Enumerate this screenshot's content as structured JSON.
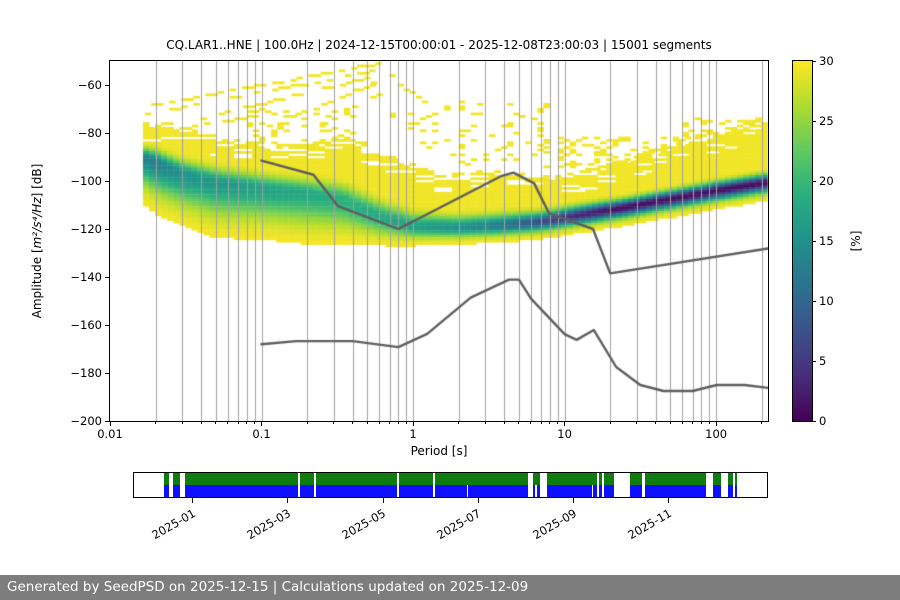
{
  "title": "CQ.LAR1..HNE | 100.0Hz | 2024-12-15T00:00:01 - 2025-12-08T23:00:03 | 15001 segments",
  "footer": {
    "text": "Generated by SeedPSD on 2025-12-15 | Calculations updated on 2025-12-09",
    "bg": "#7d7d7d",
    "fg": "#ffffff"
  },
  "chart_data": {
    "type": "heatmap",
    "subtype": "ppsd-probability-density",
    "title": "CQ.LAR1..HNE | 100.0Hz | 2024-12-15T00:00:01 - 2025-12-08T23:00:03 | 15001 segments",
    "xlabel": "Period [s]",
    "ylabel_prefix": "Amplitude [",
    "ylabel_math": "m²/s⁴/Hz",
    "ylabel_suffix": "] [dB]",
    "x_scale": "log",
    "xlim": [
      0.01,
      220
    ],
    "ylim": [
      -200,
      -50
    ],
    "x_ticks": [
      0.01,
      0.1,
      1,
      10,
      100
    ],
    "x_tick_labels": [
      "0.01",
      "0.1",
      "1",
      "10",
      "100"
    ],
    "y_ticks": [
      -60,
      -80,
      -100,
      -120,
      -140,
      -160,
      -180,
      -200
    ],
    "y_tick_labels": [
      "−60",
      "−80",
      "−100",
      "−120",
      "−140",
      "−160",
      "−180",
      "−200"
    ],
    "grid": "vertical-log-minor-and-major",
    "grid_color": "#a0a0a0",
    "colorbar": {
      "label": "[%]",
      "min": 0,
      "max": 30,
      "ticks": [
        0,
        5,
        10,
        15,
        20,
        25,
        30
      ],
      "tick_labels": [
        "0",
        "5",
        "10",
        "15",
        "20",
        "25",
        "30"
      ],
      "colormap": "viridis_r",
      "viridis_stops": [
        "#440154",
        "#472d7b",
        "#3b528b",
        "#2c728e",
        "#21918c",
        "#28ae80",
        "#5ec962",
        "#addc30",
        "#fde725"
      ]
    },
    "noise_models": {
      "color": "#5e5e5e",
      "high_noise_model": [
        [
          0.1,
          -91.5
        ],
        [
          0.22,
          -97.4
        ],
        [
          0.32,
          -110.5
        ],
        [
          0.8,
          -120.0
        ],
        [
          3.8,
          -98.0
        ],
        [
          4.6,
          -96.5
        ],
        [
          6.3,
          -101.0
        ],
        [
          7.9,
          -113.5
        ],
        [
          15.4,
          -120.0
        ],
        [
          20.0,
          -138.5
        ],
        [
          220,
          -128.1
        ]
      ],
      "low_noise_model": [
        [
          0.1,
          -168.0
        ],
        [
          0.17,
          -166.7
        ],
        [
          0.4,
          -166.7
        ],
        [
          0.8,
          -169.2
        ],
        [
          1.24,
          -163.7
        ],
        [
          2.4,
          -148.6
        ],
        [
          4.3,
          -141.1
        ],
        [
          5.0,
          -141.1
        ],
        [
          6.0,
          -149.0
        ],
        [
          10.0,
          -163.8
        ],
        [
          12.0,
          -166.2
        ],
        [
          15.6,
          -162.1
        ],
        [
          21.9,
          -177.5
        ],
        [
          31.6,
          -185.0
        ],
        [
          45.0,
          -187.5
        ],
        [
          70.0,
          -187.5
        ],
        [
          101.0,
          -185.0
        ],
        [
          154.0,
          -185.0
        ],
        [
          220,
          -186.2
        ]
      ]
    },
    "ppsd": {
      "p_min": 0.0165,
      "p_max": 220,
      "col_step_decades": 0.04,
      "db_bin": 1,
      "value_threshold": 0.35,
      "halo_value": 0.6,
      "ridge": [
        [
          0.0165,
          -90,
          2.5,
          7,
          17
        ],
        [
          0.02,
          -92,
          3,
          8,
          17
        ],
        [
          0.03,
          -97,
          3.5,
          8,
          15
        ],
        [
          0.05,
          -100.5,
          3.5,
          8.5,
          14
        ],
        [
          0.1,
          -103,
          3.5,
          8,
          13
        ],
        [
          0.2,
          -105,
          3.5,
          8,
          12
        ],
        [
          0.35,
          -108,
          4,
          7,
          11
        ],
        [
          0.6,
          -115,
          4,
          4.5,
          12
        ],
        [
          1.0,
          -119,
          3.5,
          3,
          13
        ],
        [
          2.0,
          -119.5,
          3,
          2.5,
          15
        ],
        [
          4.0,
          -118.5,
          3,
          2.5,
          18
        ],
        [
          7.0,
          -117,
          2.5,
          2.5,
          23
        ],
        [
          12,
          -114.5,
          2.5,
          2.5,
          27
        ],
        [
          25,
          -111,
          2.2,
          2.6,
          29
        ],
        [
          50,
          -107.5,
          2.2,
          2.6,
          29
        ],
        [
          100,
          -104,
          2.2,
          2.6,
          29
        ],
        [
          220,
          -100.5,
          2.2,
          2.6,
          29
        ]
      ],
      "halo": [
        [
          0.0165,
          -75,
          -109
        ],
        [
          0.025,
          -76,
          -111
        ],
        [
          0.03,
          -77,
          -118
        ],
        [
          0.05,
          -81,
          -119.5
        ],
        [
          0.1,
          -84,
          -120.5
        ],
        [
          0.2,
          -84.5,
          -121
        ],
        [
          0.35,
          -82,
          -121
        ],
        [
          0.5,
          -84,
          -121.5
        ],
        [
          0.7,
          -88,
          -122
        ],
        [
          1.0,
          -93,
          -122
        ],
        [
          2.0,
          -97,
          -121.5
        ],
        [
          3.5,
          -95,
          -121
        ],
        [
          8.0,
          -98,
          -119.5
        ],
        [
          12,
          -96,
          -117.5
        ],
        [
          20,
          -93,
          -115.5
        ],
        [
          40,
          -87,
          -112
        ],
        [
          80,
          -81,
          -109
        ],
        [
          150,
          -76,
          -107
        ],
        [
          220,
          -73,
          -105.5
        ]
      ],
      "speckle_regions": [
        [
          0.08,
          0.45,
          -70,
          -84,
          0.18
        ],
        [
          0.7,
          2.0,
          -68,
          -90,
          0.08
        ],
        [
          2.0,
          8.0,
          -67,
          -94,
          0.12
        ],
        [
          9,
          70,
          -82,
          -96,
          0.3
        ],
        [
          60,
          220,
          -74,
          -84,
          0.3
        ]
      ],
      "streaks": [
        [
          0.017,
          -69,
          0.6,
          -51,
          0.6
        ],
        [
          0.017,
          -72.5,
          0.55,
          -54,
          0.55
        ],
        [
          0.03,
          -76,
          0.5,
          -57,
          0.5
        ],
        [
          0.09,
          -80,
          0.55,
          -60,
          0.45
        ],
        [
          0.25,
          -77,
          0.62,
          -63,
          0.5
        ],
        [
          0.4,
          -62,
          0.78,
          -55,
          0.5
        ],
        [
          0.6,
          -54,
          1.3,
          -68,
          0.45
        ],
        [
          0.02,
          -80,
          0.09,
          -73,
          0.5
        ]
      ]
    },
    "timeline": {
      "green_color": "#0e7c0e",
      "blue_color": "#0f0fff",
      "tick_labels": [
        "2025-01",
        "2025-03",
        "2025-05",
        "2025-07",
        "2025-09",
        "2025-11"
      ],
      "tick_pos_pct": [
        9.4,
        24.4,
        39.4,
        54.4,
        69.4,
        84.4
      ],
      "green_segments": [
        [
          4.7,
          5.6
        ],
        [
          6.2,
          7.3
        ],
        [
          8.1,
          25.9
        ],
        [
          26.2,
          28.4
        ],
        [
          28.7,
          41.6
        ],
        [
          41.8,
          47.2
        ],
        [
          47.5,
          62.3
        ],
        [
          63.0,
          64.2
        ],
        [
          65.3,
          73.2
        ],
        [
          73.5,
          74.0
        ],
        [
          74.3,
          75.8
        ],
        [
          78.3,
          80.3
        ],
        [
          80.7,
          90.3
        ],
        [
          91.5,
          92.8
        ],
        [
          93.8,
          94.6
        ],
        [
          94.9,
          95.3
        ]
      ],
      "blue_segments": [
        [
          4.7,
          5.6
        ],
        [
          6.2,
          7.3
        ],
        [
          8.1,
          25.9
        ],
        [
          26.2,
          28.4
        ],
        [
          28.7,
          41.6
        ],
        [
          41.8,
          47.2
        ],
        [
          47.5,
          52.6
        ],
        [
          52.8,
          62.3
        ],
        [
          63.0,
          63.4
        ],
        [
          63.6,
          64.2
        ],
        [
          65.3,
          72.3
        ],
        [
          72.5,
          73.2
        ],
        [
          73.5,
          74.0
        ],
        [
          74.3,
          75.8
        ],
        [
          78.3,
          80.3
        ],
        [
          80.7,
          90.3
        ],
        [
          91.5,
          92.8
        ],
        [
          93.8,
          94.6
        ],
        [
          94.9,
          95.3
        ]
      ]
    }
  }
}
